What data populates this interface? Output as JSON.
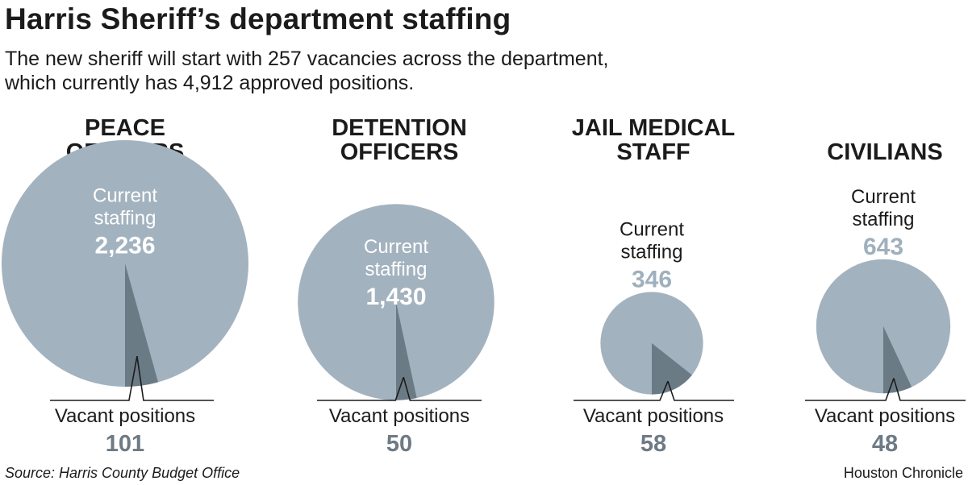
{
  "title": "Harris Sheriff’s department staffing",
  "subtitle": "The new sheriff will start with 257 vacancies across the department, which currently has 4,912 approved positions.",
  "colors": {
    "staffing": "#a3b2bf",
    "vacancy": "#6b7b86",
    "label_light": "#ffffff",
    "label_dark": "#1b1b1b",
    "value_muted": "#9fb0bd",
    "vacancy_value": "#6e7a84"
  },
  "chart_data": {
    "type": "pie",
    "staffing_label_lines": [
      "Current",
      "staffing"
    ],
    "vacancy_label": "Vacant positions",
    "groups": [
      {
        "name_lines": [
          "PEACE",
          "OFFICERS"
        ],
        "current_staffing": 2236,
        "current_staffing_label": "2,236",
        "vacant_positions": 101,
        "vacant_positions_label": "101"
      },
      {
        "name_lines": [
          "DETENTION",
          "OFFICERS"
        ],
        "current_staffing": 1430,
        "current_staffing_label": "1,430",
        "vacant_positions": 50,
        "vacant_positions_label": "50"
      },
      {
        "name_lines": [
          "JAIL MEDICAL",
          "STAFF"
        ],
        "current_staffing": 346,
        "current_staffing_label": "346",
        "vacant_positions": 58,
        "vacant_positions_label": "58"
      },
      {
        "name_lines": [
          "CIVILIANS"
        ],
        "current_staffing": 643,
        "current_staffing_label": "643",
        "vacant_positions": 48,
        "vacant_positions_label": "48"
      }
    ]
  },
  "footer": {
    "source": "Source: Harris County Budget Office",
    "credit": "Houston Chronicle"
  }
}
